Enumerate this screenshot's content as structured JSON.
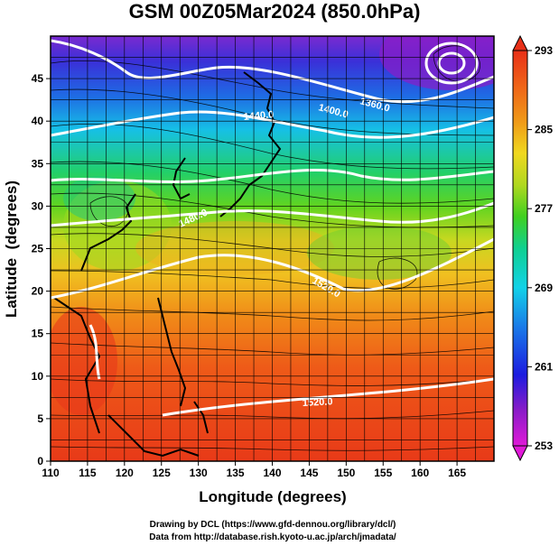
{
  "title": "GSM 00Z05Mar2024 (850.0hPa)",
  "xlabel": "Longitude (degrees)",
  "ylabel": "Latitude  (degrees)",
  "x_ticks": [
    "110",
    "115",
    "120",
    "125",
    "130",
    "135",
    "140",
    "145",
    "150",
    "155",
    "160",
    "165"
  ],
  "y_ticks": [
    "0",
    "5",
    "10",
    "15",
    "20",
    "25",
    "30",
    "35",
    "40",
    "45"
  ],
  "colorbar": {
    "tick_labels": [
      "253",
      "261",
      "269",
      "277",
      "285",
      "293"
    ],
    "min": 253,
    "max": 293,
    "colors": [
      "#e01ad8",
      "#8a1cc8",
      "#1c1ce0",
      "#1a7ae8",
      "#12d2e8",
      "#10d090",
      "#40d020",
      "#b0d820",
      "#f0d820",
      "#f09a18",
      "#f06a18",
      "#e83018"
    ]
  },
  "contour_labels": [
    "1440.0",
    "1400.0",
    "1360.0",
    "1480.0",
    "1520.0",
    "1520.0"
  ],
  "credits": {
    "line1": "Drawing by DCL (https://www.gfd-dennou.org/library/dcl/)",
    "line2": "Data from http://database.rish.kyoto-u.ac.jp/arch/jmadata/"
  }
}
